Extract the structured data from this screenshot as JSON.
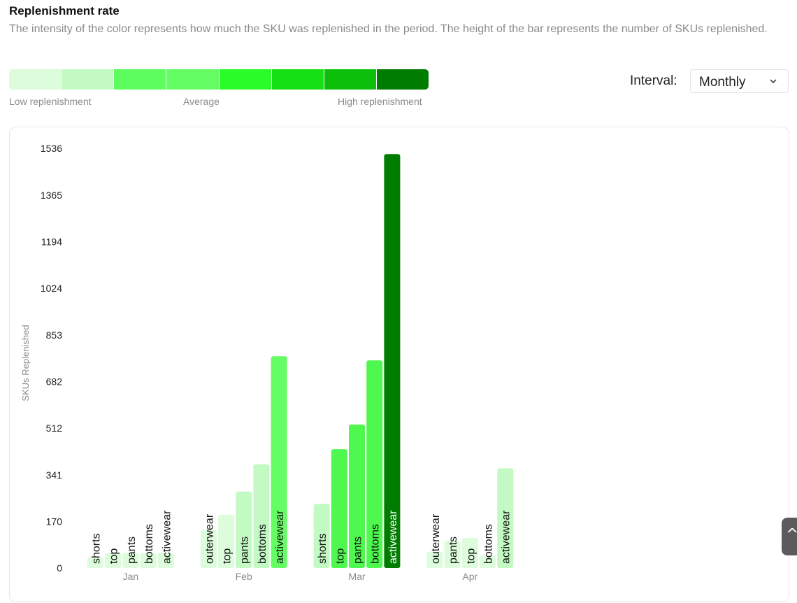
{
  "header": {
    "title": "Replenishment rate",
    "description": "The intensity of the color represents how much the SKU was replenished in the period. The height of the bar represents the number of SKUs replenished."
  },
  "legend": {
    "colors": [
      "#dcfcdc",
      "#c3fac3",
      "#5efd5e",
      "#64fe64",
      "#2afc2a",
      "#14e014",
      "#0bbf0b",
      "#007d00"
    ],
    "low_label": "Low replenishment",
    "mid_label": "Average",
    "high_label": "High replenishment"
  },
  "interval": {
    "label": "Interval:",
    "selected": "Monthly"
  },
  "side_tab": {
    "icon": "chevron-up-icon",
    "glyph": "^"
  },
  "chart_data": {
    "type": "bar",
    "ylabel": "SKUs Replenished",
    "ylim": [
      0,
      1536
    ],
    "y_ticks": [
      0,
      170,
      341,
      512,
      682,
      853,
      1024,
      1194,
      1365,
      1536
    ],
    "grid": false,
    "groups": [
      {
        "month": "Jan",
        "bars": [
          {
            "category": "shorts",
            "value": 40,
            "color": "#dcfcdc"
          },
          {
            "category": "top",
            "value": 55,
            "color": "#dcfcdc"
          },
          {
            "category": "pants",
            "value": 55,
            "color": "#dcfcdc"
          },
          {
            "category": "bottoms",
            "value": 55,
            "color": "#dcfcdc"
          },
          {
            "category": "activewear",
            "value": 55,
            "color": "#dcfcdc"
          }
        ]
      },
      {
        "month": "Feb",
        "bars": [
          {
            "category": "outerwear",
            "value": 140,
            "color": "#dcfcdc"
          },
          {
            "category": "top",
            "value": 195,
            "color": "#dcfcdc"
          },
          {
            "category": "pants",
            "value": 280,
            "color": "#c3fac3"
          },
          {
            "category": "bottoms",
            "value": 380,
            "color": "#c3fac3"
          },
          {
            "category": "activewear",
            "value": 775,
            "color": "#64fe64"
          }
        ]
      },
      {
        "month": "Mar",
        "bars": [
          {
            "category": "shorts",
            "value": 235,
            "color": "#c3fac3"
          },
          {
            "category": "top",
            "value": 435,
            "color": "#4ef84e"
          },
          {
            "category": "pants",
            "value": 525,
            "color": "#4ef84e"
          },
          {
            "category": "bottoms",
            "value": 760,
            "color": "#4ef84e"
          },
          {
            "category": "activewear",
            "value": 1515,
            "color": "#007d00"
          }
        ]
      },
      {
        "month": "Apr",
        "bars": [
          {
            "category": "outerwear",
            "value": 60,
            "color": "#dcfcdc"
          },
          {
            "category": "pants",
            "value": 100,
            "color": "#dcfcdc"
          },
          {
            "category": "top",
            "value": 110,
            "color": "#dcfcdc"
          },
          {
            "category": "bottoms",
            "value": 45,
            "color": "#dcfcdc"
          },
          {
            "category": "activewear",
            "value": 365,
            "color": "#c3fac3"
          }
        ]
      }
    ]
  }
}
